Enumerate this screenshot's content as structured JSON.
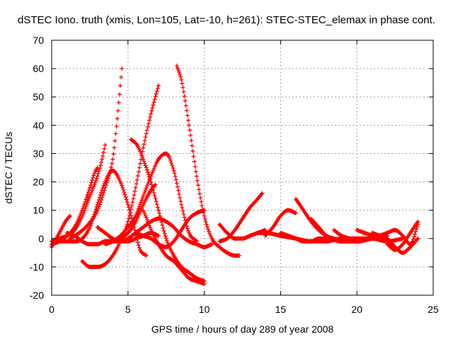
{
  "chart_data": {
    "type": "scatter",
    "title": "dSTEC Iono. truth (xmis, Lon=105, Lat=-10, h=261): STEC-STEC_elemax in phase cont.",
    "xlabel": "GPS time / hours of day 289 of year 2008",
    "ylabel": "dSTEC  / TECUs",
    "xlim": [
      0,
      25
    ],
    "ylim": [
      -20,
      70
    ],
    "xticks": [
      "0",
      "5",
      "10",
      "15",
      "20",
      "25"
    ],
    "yticks": [
      "-20",
      "-10",
      "0",
      "10",
      "20",
      "30",
      "40",
      "50",
      "60",
      "70"
    ],
    "grid": true,
    "legend": "none",
    "marker": "plus",
    "color": "#ff0000",
    "series": [
      {
        "x": [
          0.0,
          0.3,
          0.6,
          0.9,
          1.2
        ],
        "y": [
          -3,
          0,
          3,
          6,
          8
        ]
      },
      {
        "x": [
          0.0,
          0.5,
          1.0,
          1.5,
          2.0,
          2.5,
          2.8,
          3.0
        ],
        "y": [
          -2,
          -1,
          1,
          4,
          10,
          18,
          23,
          25
        ]
      },
      {
        "x": [
          0.0,
          0.5,
          1.0,
          1.5,
          2.0,
          2.5,
          3.0,
          3.3,
          3.5
        ],
        "y": [
          -1,
          0,
          1,
          3,
          8,
          15,
          22,
          28,
          33
        ]
      },
      {
        "x": [
          1.2,
          1.8,
          2.4,
          3.0,
          3.5,
          4.0,
          4.2,
          4.4,
          4.6
        ],
        "y": [
          0,
          2,
          5,
          10,
          18,
          28,
          37,
          48,
          60
        ]
      },
      {
        "x": [
          0.5,
          1.0,
          1.5,
          2.0,
          2.5,
          3.0,
          3.5,
          4.0,
          4.5,
          5.0,
          5.5,
          5.8,
          6.2
        ],
        "y": [
          -1,
          -1,
          -1,
          0,
          4,
          12,
          20,
          24,
          20,
          12,
          2,
          -4,
          -6
        ]
      },
      {
        "x": [
          2.0,
          2.5,
          3.0,
          3.5,
          4.0,
          4.5,
          5.0,
          5.5,
          6.0,
          6.5,
          7.0
        ],
        "y": [
          -8,
          -10,
          -10,
          -9,
          -6,
          -1,
          6,
          18,
          32,
          44,
          54
        ]
      },
      {
        "x": [
          3.5,
          4.0,
          4.5,
          5.0,
          5.5,
          6.0,
          6.5,
          7.0,
          7.5,
          8.0,
          8.5,
          9.0,
          9.5
        ],
        "y": [
          -2,
          -1,
          1,
          4,
          8,
          15,
          22,
          28,
          30,
          24,
          12,
          2,
          -1
        ]
      },
      {
        "x": [
          5.2,
          5.6,
          6.0,
          6.5,
          7.0,
          7.5,
          8.0,
          8.5,
          9.0,
          9.5,
          10.0
        ],
        "y": [
          35,
          33,
          28,
          20,
          10,
          0,
          -6,
          -10,
          -12,
          -14,
          -15
        ]
      },
      {
        "x": [
          1.0,
          1.5,
          2.0,
          2.5,
          3.0,
          3.5,
          4.0,
          4.5,
          5.0,
          5.5,
          6.0,
          6.5,
          7.0,
          7.5,
          8.0,
          8.5,
          9.0,
          9.5,
          10.0,
          10.5
        ],
        "y": [
          2,
          1,
          -1,
          -2,
          -2,
          -1,
          -1,
          -1,
          0,
          2,
          4,
          6,
          7,
          6,
          4,
          1,
          -1,
          -2,
          -3,
          -2
        ]
      },
      {
        "x": [
          3.5,
          4.0,
          4.5,
          5.0,
          5.5,
          6.0,
          6.5,
          6.8
        ],
        "y": [
          -1,
          -1,
          0,
          2,
          6,
          12,
          17,
          19
        ]
      },
      {
        "x": [
          6.0,
          6.3,
          6.6,
          7.0,
          7.5,
          8.0,
          8.5,
          9.0,
          9.5,
          10.0
        ],
        "y": [
          10,
          6,
          2,
          -2,
          -6,
          -8,
          -11,
          -14,
          -15,
          -16
        ]
      },
      {
        "x": [
          3.0,
          3.5,
          4.0,
          4.5,
          5.0,
          5.5,
          6.0,
          6.5,
          7.0
        ],
        "y": [
          4,
          2,
          0,
          -1,
          -1,
          0,
          1,
          2,
          1
        ]
      },
      {
        "x": [
          5.5,
          6.0,
          6.5,
          7.0,
          7.5,
          8.0,
          8.5,
          9.0,
          9.5,
          10.0
        ],
        "y": [
          2,
          1,
          0,
          -2,
          -3,
          -1,
          3,
          7,
          9,
          10
        ]
      },
      {
        "x": [
          8.2,
          8.5,
          9.0,
          9.5,
          10.0,
          10.5,
          11.0,
          11.5,
          12.0,
          12.3
        ],
        "y": [
          61,
          56,
          40,
          22,
          8,
          0,
          -3,
          -5,
          -6,
          -6
        ]
      },
      {
        "x": [
          11.0,
          11.5,
          12.0,
          12.5,
          13.0,
          13.5,
          14.0
        ],
        "y": [
          5,
          2,
          0,
          0,
          1,
          2,
          3
        ]
      },
      {
        "x": [
          11.0,
          11.5,
          12.0,
          12.5,
          13.0,
          13.5,
          13.8
        ],
        "y": [
          -1,
          0,
          3,
          7,
          11,
          14,
          16
        ]
      },
      {
        "x": [
          13.5,
          14.0,
          15.0,
          16.0,
          17.0,
          18.0,
          19.0,
          20.0,
          21.0,
          22.0,
          23.0
        ],
        "y": [
          2,
          2,
          1,
          0,
          -1,
          -1,
          0,
          0,
          0,
          -1,
          0
        ]
      },
      {
        "x": [
          14.0,
          14.5,
          15.0,
          15.5,
          16.0
        ],
        "y": [
          1,
          4,
          8,
          10,
          9
        ]
      },
      {
        "x": [
          15.0,
          15.5,
          16.0,
          16.5,
          17.0,
          17.5,
          18.0
        ],
        "y": [
          2,
          1,
          0,
          -1,
          -1,
          0,
          0
        ]
      },
      {
        "x": [
          16.0,
          16.5,
          17.0,
          17.5,
          18.0,
          19.0,
          20.0,
          21.0
        ],
        "y": [
          14,
          10,
          6,
          3,
          1,
          -1,
          -1,
          0
        ]
      },
      {
        "x": [
          17.0,
          17.5,
          18.0,
          18.5,
          19.0,
          20.0,
          21.0
        ],
        "y": [
          7,
          4,
          1,
          0,
          -1,
          -1,
          0
        ]
      },
      {
        "x": [
          18.5,
          19.0,
          19.5,
          20.0,
          21.0,
          22.0
        ],
        "y": [
          3,
          1,
          0,
          -1,
          0,
          1
        ]
      },
      {
        "x": [
          20.0,
          20.5,
          21.0,
          21.5,
          22.0,
          22.5
        ],
        "y": [
          3,
          2,
          1,
          0,
          -1,
          -3
        ]
      },
      {
        "x": [
          21.0,
          21.5,
          22.0,
          22.5,
          23.0,
          23.5,
          24.0
        ],
        "y": [
          2,
          1,
          0,
          -3,
          -5,
          -3,
          0
        ]
      },
      {
        "x": [
          21.5,
          22.0,
          22.5,
          23.0,
          23.5,
          24.0
        ],
        "y": [
          1,
          2,
          3,
          1,
          -2,
          5
        ]
      },
      {
        "x": [
          22.0,
          22.5,
          23.0,
          23.5,
          24.0
        ],
        "y": [
          -2,
          -4,
          -2,
          2,
          6
        ]
      }
    ]
  }
}
